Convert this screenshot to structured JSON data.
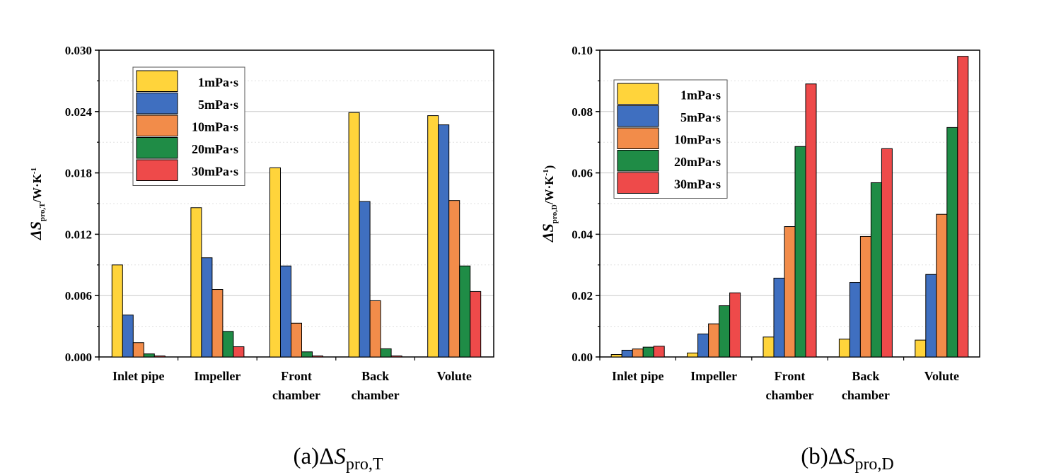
{
  "colors": {
    "1mPa·s": "#ffd43b",
    "5mPa·s": "#3f6fc0",
    "10mPa·s": "#f28c4a",
    "20mPa·s": "#1f8c46",
    "30mPa·s": "#ee4a4a"
  },
  "chart_data": [
    {
      "type": "bar",
      "title": "",
      "caption": {
        "prefix": "(a)",
        "symbol": "ΔS",
        "subscript": "pro,T"
      },
      "ylabel": {
        "symbol": "ΔS",
        "subscript": "pro,T",
        "unit": "/W·K",
        "exponent": "-1"
      },
      "xlabel": "",
      "categories": [
        [
          "Inlet pipe"
        ],
        [
          "Impeller"
        ],
        [
          "Front",
          "chamber"
        ],
        [
          "Back",
          "chamber"
        ],
        [
          "Volute"
        ]
      ],
      "ylim": [
        0,
        0.03
      ],
      "yticks": [
        "0.000",
        "0.006",
        "0.012",
        "0.018",
        "0.024",
        "0.030"
      ],
      "grid": true,
      "legend_position": "top-left",
      "series": [
        {
          "name": "1mPa·s",
          "values": [
            0.009,
            0.0146,
            0.0185,
            0.0239,
            0.0236
          ]
        },
        {
          "name": "5mPa·s",
          "values": [
            0.0041,
            0.0097,
            0.0089,
            0.0152,
            0.0227
          ]
        },
        {
          "name": "10mPa·s",
          "values": [
            0.0014,
            0.0066,
            0.0033,
            0.0055,
            0.0153
          ]
        },
        {
          "name": "20mPa·s",
          "values": [
            0.0003,
            0.0025,
            0.0005,
            0.0008,
            0.0089
          ]
        },
        {
          "name": "30mPa·s",
          "values": [
            0.0001,
            0.001,
            0.0001,
            0.0001,
            0.0064
          ]
        }
      ]
    },
    {
      "type": "bar",
      "title": "",
      "caption": {
        "prefix": "(b)",
        "symbol": "ΔS",
        "subscript": "pro,D"
      },
      "ylabel": {
        "symbol": "ΔS",
        "subscript": "pro,D",
        "unit": "/W·K",
        "exponent": "-1",
        "close": ")"
      },
      "xlabel": "",
      "categories": [
        [
          "Inlet pipe"
        ],
        [
          "Impeller"
        ],
        [
          "Front",
          "chamber"
        ],
        [
          "Back",
          "chamber"
        ],
        [
          "Volute"
        ]
      ],
      "ylim": [
        0,
        0.1
      ],
      "yticks": [
        "0.00",
        "0.02",
        "0.04",
        "0.06",
        "0.08",
        "0.10"
      ],
      "grid": true,
      "legend_position": "top-left",
      "series": [
        {
          "name": "1mPa·s",
          "values": [
            0.0008,
            0.0013,
            0.0065,
            0.0058,
            0.0055
          ]
        },
        {
          "name": "5mPa·s",
          "values": [
            0.0022,
            0.0075,
            0.0257,
            0.0243,
            0.0269
          ]
        },
        {
          "name": "10mPa·s",
          "values": [
            0.0026,
            0.0108,
            0.0425,
            0.0393,
            0.0465
          ]
        },
        {
          "name": "20mPa·s",
          "values": [
            0.0032,
            0.0167,
            0.0686,
            0.0568,
            0.0748
          ]
        },
        {
          "name": "30mPa·s",
          "values": [
            0.0035,
            0.0209,
            0.089,
            0.0679,
            0.098
          ]
        }
      ]
    }
  ]
}
